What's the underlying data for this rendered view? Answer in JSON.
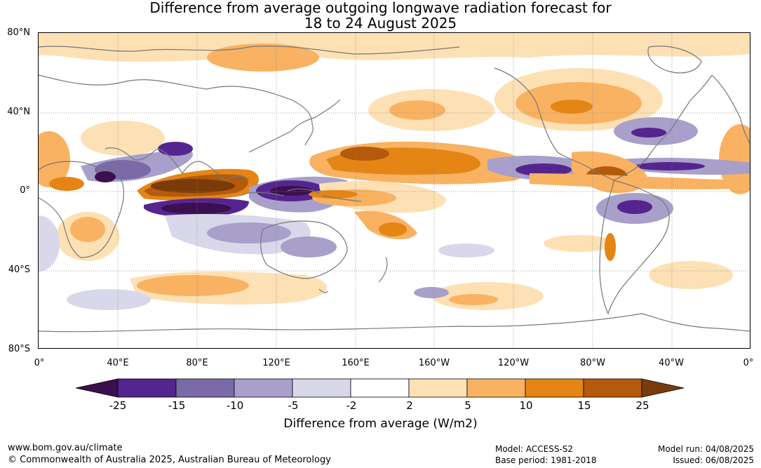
{
  "title": {
    "line1": "Difference from average outgoing longwave radiation forecast for",
    "line2": "18 to 24 August 2025"
  },
  "map": {
    "lat_labels": [
      "80°N",
      "40°N",
      "0°",
      "40°S",
      "80°S"
    ],
    "lon_labels": [
      "0°",
      "40°E",
      "80°E",
      "120°E",
      "160°E",
      "160°W",
      "120°W",
      "80°W",
      "40°W",
      "0°"
    ],
    "colors": {
      "coast": "#777777",
      "grid": "#888888"
    }
  },
  "colorbar": {
    "title": "Difference from average (W/m2)",
    "ticks": [
      "-25",
      "-15",
      "-10",
      "-5",
      "-2",
      "2",
      "5",
      "10",
      "15",
      "25"
    ],
    "colors": [
      "#3c0f4f",
      "#55258f",
      "#7b6aa8",
      "#a89fcb",
      "#d8d8ea",
      "#ffffff",
      "#fde0b4",
      "#f9b262",
      "#e48516",
      "#b45a0c",
      "#7b3b08"
    ]
  },
  "footer": {
    "website": "www.bom.gov.au/climate",
    "copyright": "© Commonwealth of Australia 2025, Australian Bureau of Meteorology",
    "model": "Model: ACCESS-S2",
    "base_period": "Base period: 1981-2018",
    "model_run": "Model run: 04/08/2025",
    "issued": "Issued: 06/08/2025"
  }
}
